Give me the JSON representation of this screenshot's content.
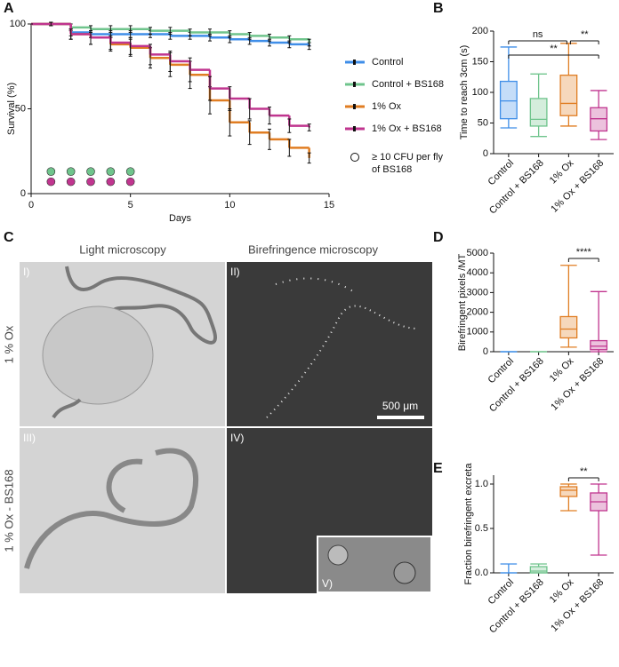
{
  "panel_labels": [
    "A",
    "B",
    "C",
    "D",
    "E"
  ],
  "chart_data": [
    {
      "type": "step",
      "x_label": "Days",
      "y_label": "Survival (%)",
      "xlim": [
        0,
        15
      ],
      "xticks": [
        0,
        5,
        10,
        15
      ],
      "ylim": [
        0,
        100
      ],
      "yticks": [
        0,
        50,
        100
      ],
      "x": [
        0,
        1,
        2,
        3,
        4,
        5,
        6,
        7,
        8,
        9,
        10,
        11,
        12,
        13,
        14
      ],
      "series": [
        {
          "name": "Control",
          "color": "#3f8ee8",
          "values": [
            100,
            100,
            95,
            94,
            94,
            94,
            94,
            93,
            93,
            92,
            91,
            90,
            89,
            88,
            87
          ],
          "errors": [
            0,
            1,
            2,
            2,
            2,
            2,
            2,
            2,
            2,
            2,
            2,
            2,
            2,
            2,
            2
          ]
        },
        {
          "name": "Control + BS168",
          "color": "#6fc48c",
          "values": [
            100,
            100,
            98,
            97,
            97,
            97,
            96,
            96,
            95,
            95,
            94,
            93,
            92,
            91,
            89
          ],
          "errors": [
            0,
            1,
            2,
            2,
            2,
            2,
            2,
            2,
            2,
            2,
            2,
            2,
            2,
            2,
            2
          ]
        },
        {
          "name": "1% Ox",
          "color": "#e07d22",
          "values": [
            100,
            100,
            94,
            92,
            88,
            86,
            80,
            76,
            70,
            55,
            42,
            36,
            32,
            27,
            21
          ],
          "errors": [
            0,
            1,
            3,
            4,
            4,
            5,
            6,
            7,
            8,
            8,
            8,
            7,
            6,
            5,
            3
          ]
        },
        {
          "name": "1% Ox + BS168",
          "color": "#c0358f",
          "values": [
            100,
            100,
            94,
            92,
            89,
            87,
            82,
            78,
            73,
            62,
            56,
            50,
            46,
            40,
            39
          ],
          "errors": [
            0,
            1,
            3,
            4,
            4,
            5,
            6,
            6,
            7,
            7,
            7,
            6,
            5,
            4,
            2
          ]
        }
      ],
      "cfu_markers": {
        "label_lines": [
          "≥ 10 CFU per fly",
          "of BS168"
        ],
        "groups": [
          {
            "color": "#6fc48c",
            "x": [
              1,
              2,
              3,
              4,
              5
            ],
            "y": 13
          },
          {
            "color": "#c0358f",
            "x": [
              1,
              2,
              3,
              4,
              5
            ],
            "y": 7
          }
        ]
      }
    },
    {
      "type": "box",
      "y_label": "Time to reach 3cm (s)",
      "ylim": [
        0,
        200
      ],
      "yticks": [
        0,
        50,
        100,
        150,
        200
      ],
      "categories": [
        "Control",
        "Control + BS168",
        "1% Ox",
        "1% Ox + BS168"
      ],
      "colors": [
        "#3f8ee8",
        "#6fc48c",
        "#e07d22",
        "#c0358f"
      ],
      "boxes": [
        {
          "min": 42,
          "q1": 57,
          "median": 86,
          "q3": 118,
          "max": 174
        },
        {
          "min": 28,
          "q1": 45,
          "median": 56,
          "q3": 90,
          "max": 130
        },
        {
          "min": 45,
          "q1": 62,
          "median": 82,
          "q3": 128,
          "max": 180
        },
        {
          "min": 23,
          "q1": 37,
          "median": 57,
          "q3": 75,
          "max": 103
        }
      ],
      "annotations": [
        {
          "text": "ns",
          "from": 0,
          "to": 2
        },
        {
          "text": "**",
          "from": 2,
          "to": 3
        },
        {
          "text": "**",
          "from": 0,
          "to": 3
        }
      ]
    },
    {
      "type": "box",
      "y_label": "Birefringent pixels /MT",
      "ylim": [
        0,
        5000
      ],
      "yticks": [
        0,
        1000,
        2000,
        3000,
        4000,
        5000
      ],
      "categories": [
        "Control",
        "Control + BS168",
        "1% Ox",
        "1% Ox + BS168"
      ],
      "colors": [
        "#3f8ee8",
        "#6fc48c",
        "#e07d22",
        "#c0358f"
      ],
      "boxes": [
        {
          "min": 0,
          "q1": 0,
          "median": 0,
          "q3": 0,
          "max": 0
        },
        {
          "min": 0,
          "q1": 0,
          "median": 0,
          "q3": 0,
          "max": 0
        },
        {
          "min": 230,
          "q1": 700,
          "median": 1150,
          "q3": 1780,
          "max": 4380
        },
        {
          "min": 0,
          "q1": 100,
          "median": 280,
          "q3": 560,
          "max": 3050
        }
      ],
      "annotations": [
        {
          "text": "****",
          "from": 2,
          "to": 3
        }
      ]
    },
    {
      "type": "box",
      "y_label": "Fraction birefringent excreta",
      "ylim": [
        0,
        1.1
      ],
      "yticks": [
        {
          "value": 0,
          "label": "0.0"
        },
        {
          "value": 0.5,
          "label": "0.5"
        },
        {
          "value": 1,
          "label": "1.0"
        }
      ],
      "categories": [
        "Control",
        "Control + BS168",
        "1% Ox",
        "1% Ox + BS168"
      ],
      "colors": [
        "#3f8ee8",
        "#6fc48c",
        "#e07d22",
        "#c0358f"
      ],
      "boxes": [
        {
          "min": 0,
          "q1": 0,
          "median": 0,
          "q3": 0,
          "max": 0.1
        },
        {
          "min": 0,
          "q1": 0,
          "median": 0.02,
          "q3": 0.07,
          "max": 0.1
        },
        {
          "min": 0.7,
          "q1": 0.86,
          "median": 0.93,
          "q3": 0.97,
          "max": 1
        },
        {
          "min": 0.2,
          "q1": 0.7,
          "median": 0.8,
          "q3": 0.9,
          "max": 1
        }
      ],
      "annotations": [
        {
          "text": "**",
          "from": 2,
          "to": 3
        }
      ]
    }
  ],
  "microscopy": {
    "column_titles": [
      "Light microscopy",
      "Birefringence microscopy"
    ],
    "row_labels": [
      "1 % Ox",
      "1 % Ox - BS168"
    ],
    "panel_tags": [
      "I)",
      "II)",
      "III)",
      "IV)",
      "V)"
    ],
    "scale_bar": "500 μm"
  }
}
